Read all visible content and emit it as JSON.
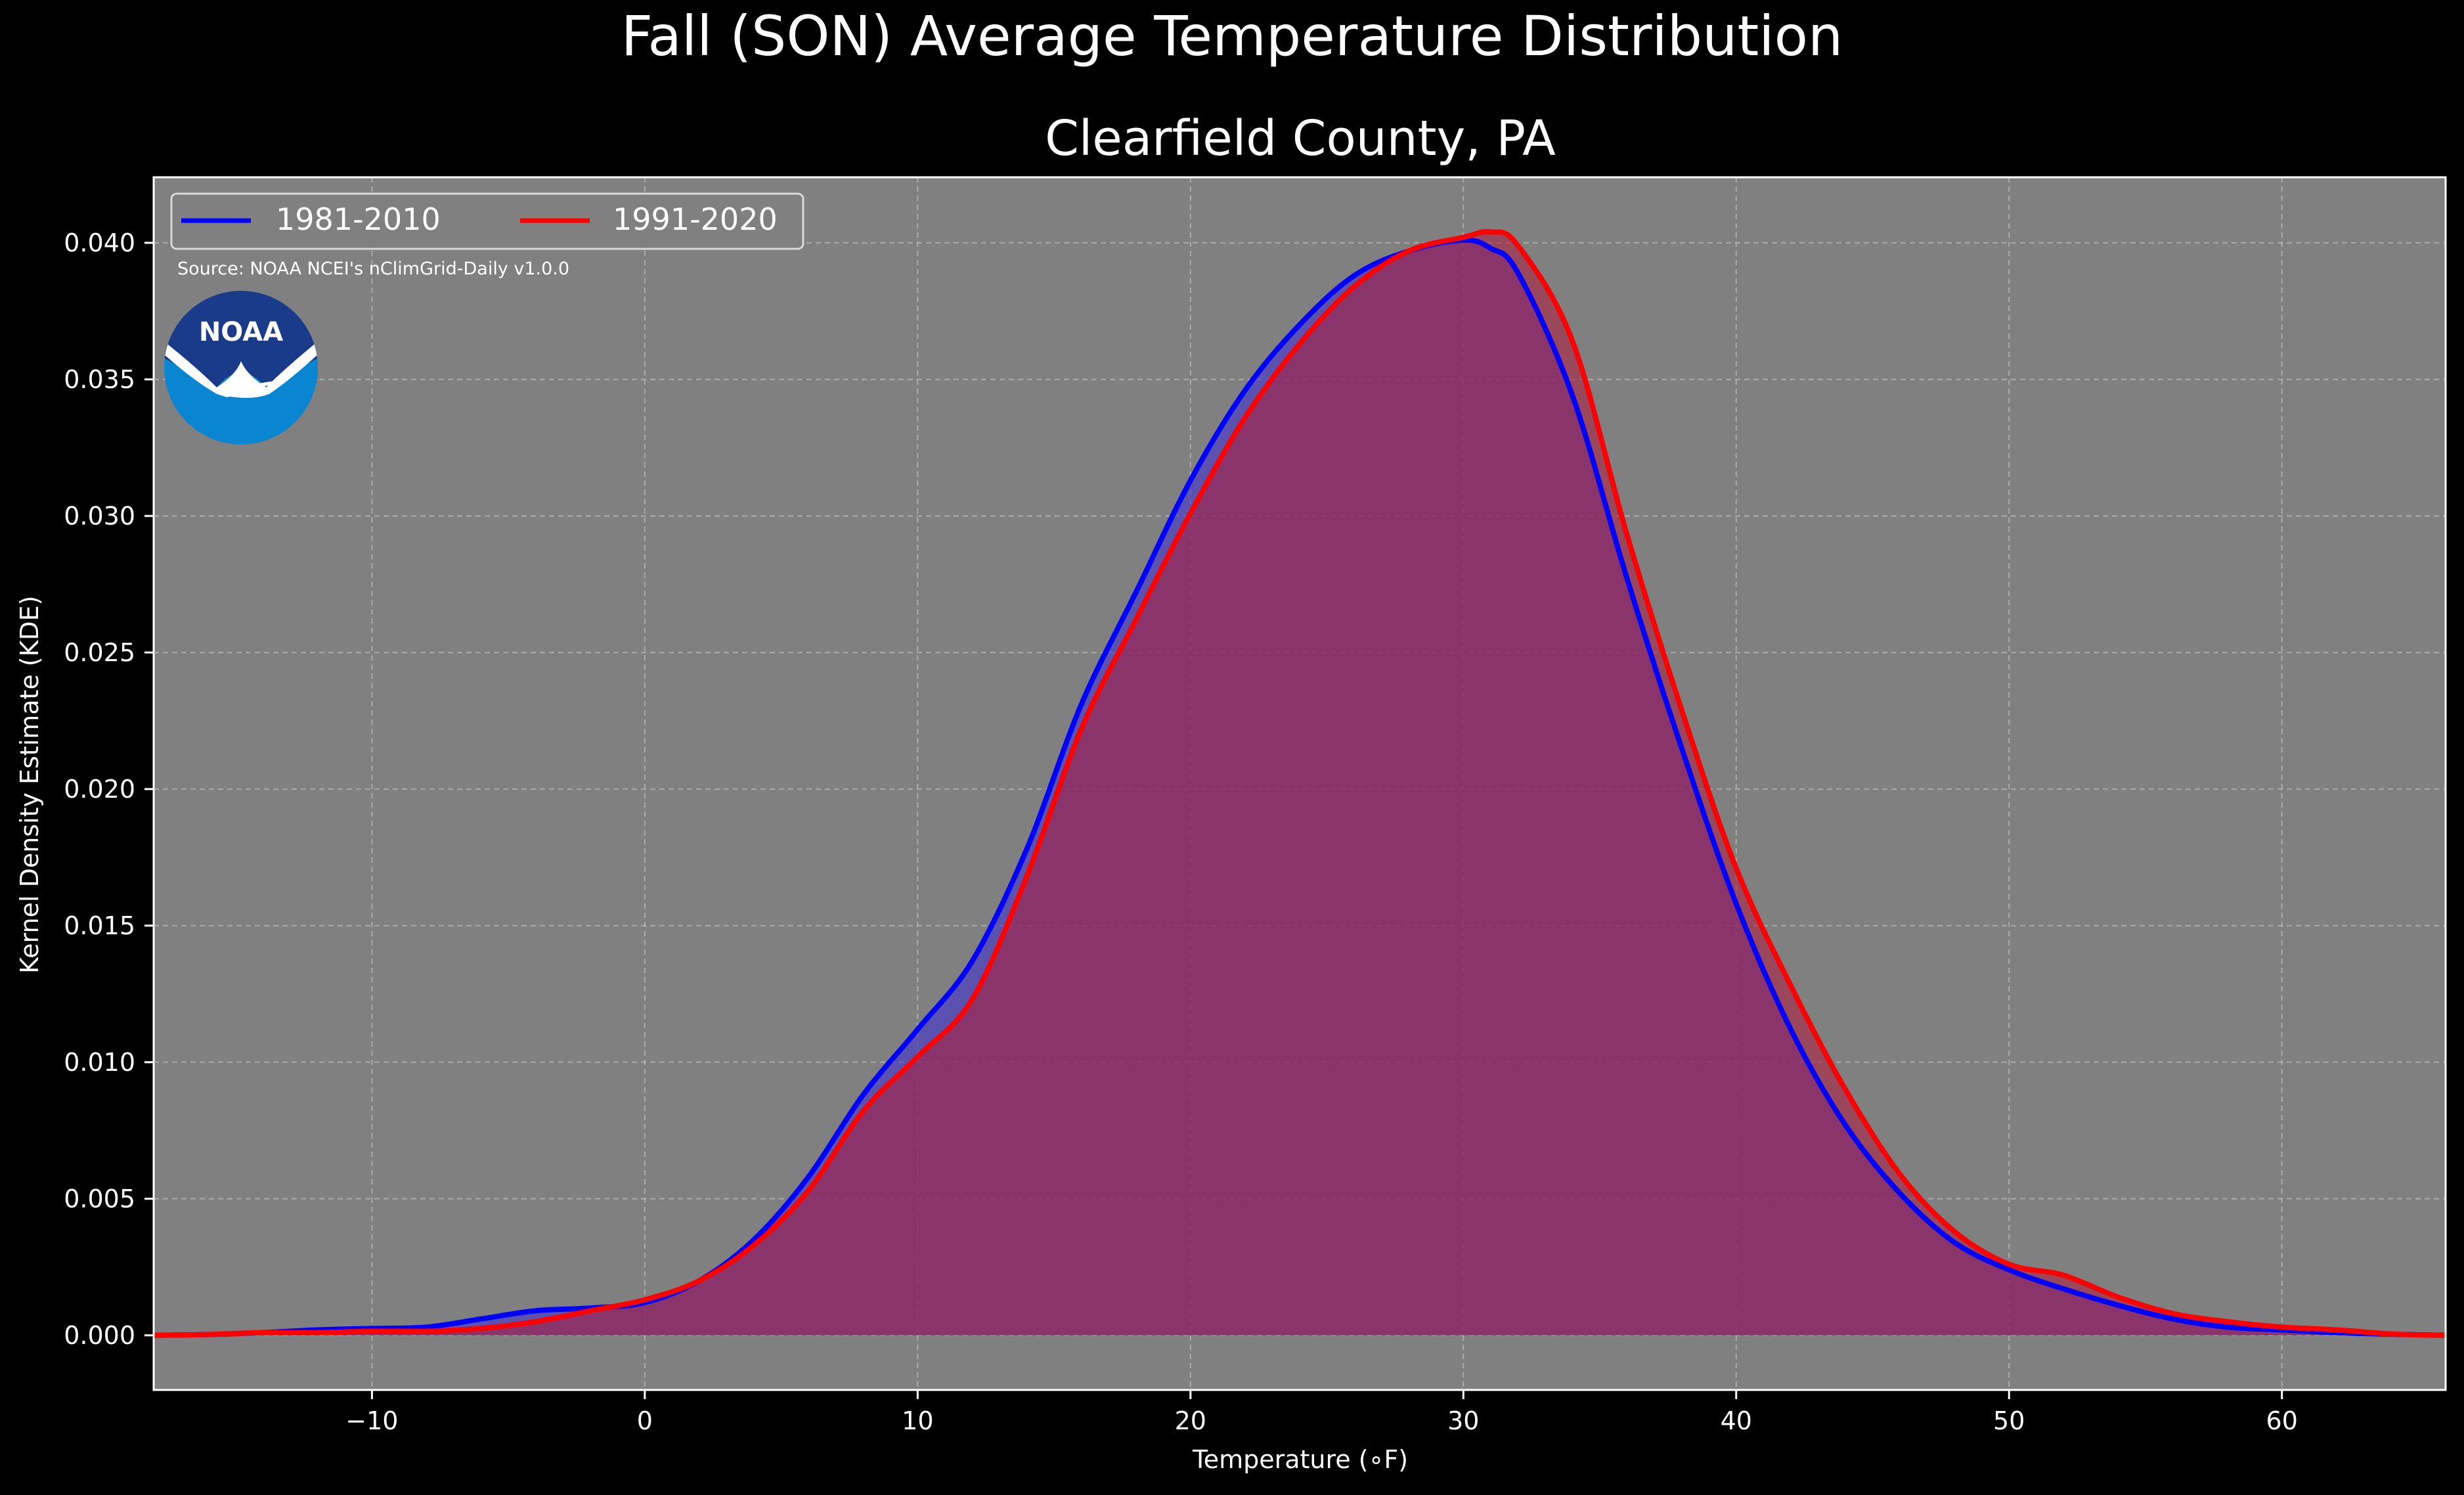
{
  "chart_data": {
    "type": "area",
    "title": "Fall (SON) Average Temperature Distribution",
    "subtitle": "Clearfield County, PA",
    "xlabel": "Temperature ($^\\circ$F)",
    "xlabel_display": "Temperature (∘F)",
    "ylabel": "Kernel Density Estimate (KDE)",
    "xlim": [
      -18,
      66
    ],
    "ylim": [
      -0.002,
      0.0424
    ],
    "x_ticks": [
      -10,
      0,
      10,
      20,
      30,
      40,
      50,
      60
    ],
    "x_tick_labels": [
      "−10",
      "0",
      "10",
      "20",
      "30",
      "40",
      "50",
      "60"
    ],
    "y_ticks": [
      0.0,
      0.005,
      0.01,
      0.015,
      0.02,
      0.025,
      0.03,
      0.035,
      0.04
    ],
    "y_tick_labels": [
      "0.000",
      "0.005",
      "0.010",
      "0.015",
      "0.020",
      "0.025",
      "0.030",
      "0.035",
      "0.040"
    ],
    "grid": true,
    "legend_position": "top-left",
    "source_note": "Source: NOAA NCEI's nClimGrid-Daily v1.0.0",
    "logo_text": "NOAA",
    "background": "#000000",
    "plot_background": "#808080",
    "x": [
      -18,
      -16,
      -14,
      -12,
      -10,
      -8,
      -6,
      -4,
      -2,
      0,
      2,
      4,
      6,
      8,
      10,
      12,
      14,
      16,
      18,
      20,
      22,
      24,
      26,
      28,
      30,
      31,
      32,
      34,
      36,
      38,
      40,
      42,
      44,
      46,
      48,
      50,
      52,
      54,
      56,
      58,
      60,
      62,
      64,
      66
    ],
    "series": [
      {
        "name": "1981-2010",
        "color": "#0000ff",
        "fill": "#4433cc",
        "values": [
          0.0,
          3e-05,
          0.0001,
          0.0002,
          0.00025,
          0.0003,
          0.0006,
          0.0009,
          0.001,
          0.0012,
          0.002,
          0.0035,
          0.0058,
          0.0088,
          0.0112,
          0.0137,
          0.0178,
          0.0231,
          0.0272,
          0.0313,
          0.0346,
          0.037,
          0.0388,
          0.0397,
          0.0401,
          0.0398,
          0.0389,
          0.0344,
          0.0277,
          0.0215,
          0.0158,
          0.0112,
          0.0077,
          0.0052,
          0.0034,
          0.0024,
          0.0017,
          0.0011,
          0.0006,
          0.0003,
          0.0002,
          0.0001,
          4e-05,
          0.0
        ]
      },
      {
        "name": "1991-2020",
        "color": "#ff0000",
        "fill": "#aa2244",
        "values": [
          0.0,
          3e-05,
          0.0001,
          0.0001,
          0.00015,
          0.00015,
          0.00025,
          0.0005,
          0.0009,
          0.0013,
          0.002,
          0.0033,
          0.0053,
          0.0082,
          0.0102,
          0.0123,
          0.0168,
          0.0222,
          0.0262,
          0.0301,
          0.0336,
          0.0363,
          0.0384,
          0.0397,
          0.0402,
          0.0404,
          0.0399,
          0.0364,
          0.0293,
          0.0229,
          0.0171,
          0.0128,
          0.009,
          0.0059,
          0.0038,
          0.0026,
          0.0022,
          0.0014,
          0.0008,
          0.0005,
          0.0003,
          0.0002,
          5e-05,
          0.0
        ]
      }
    ]
  }
}
